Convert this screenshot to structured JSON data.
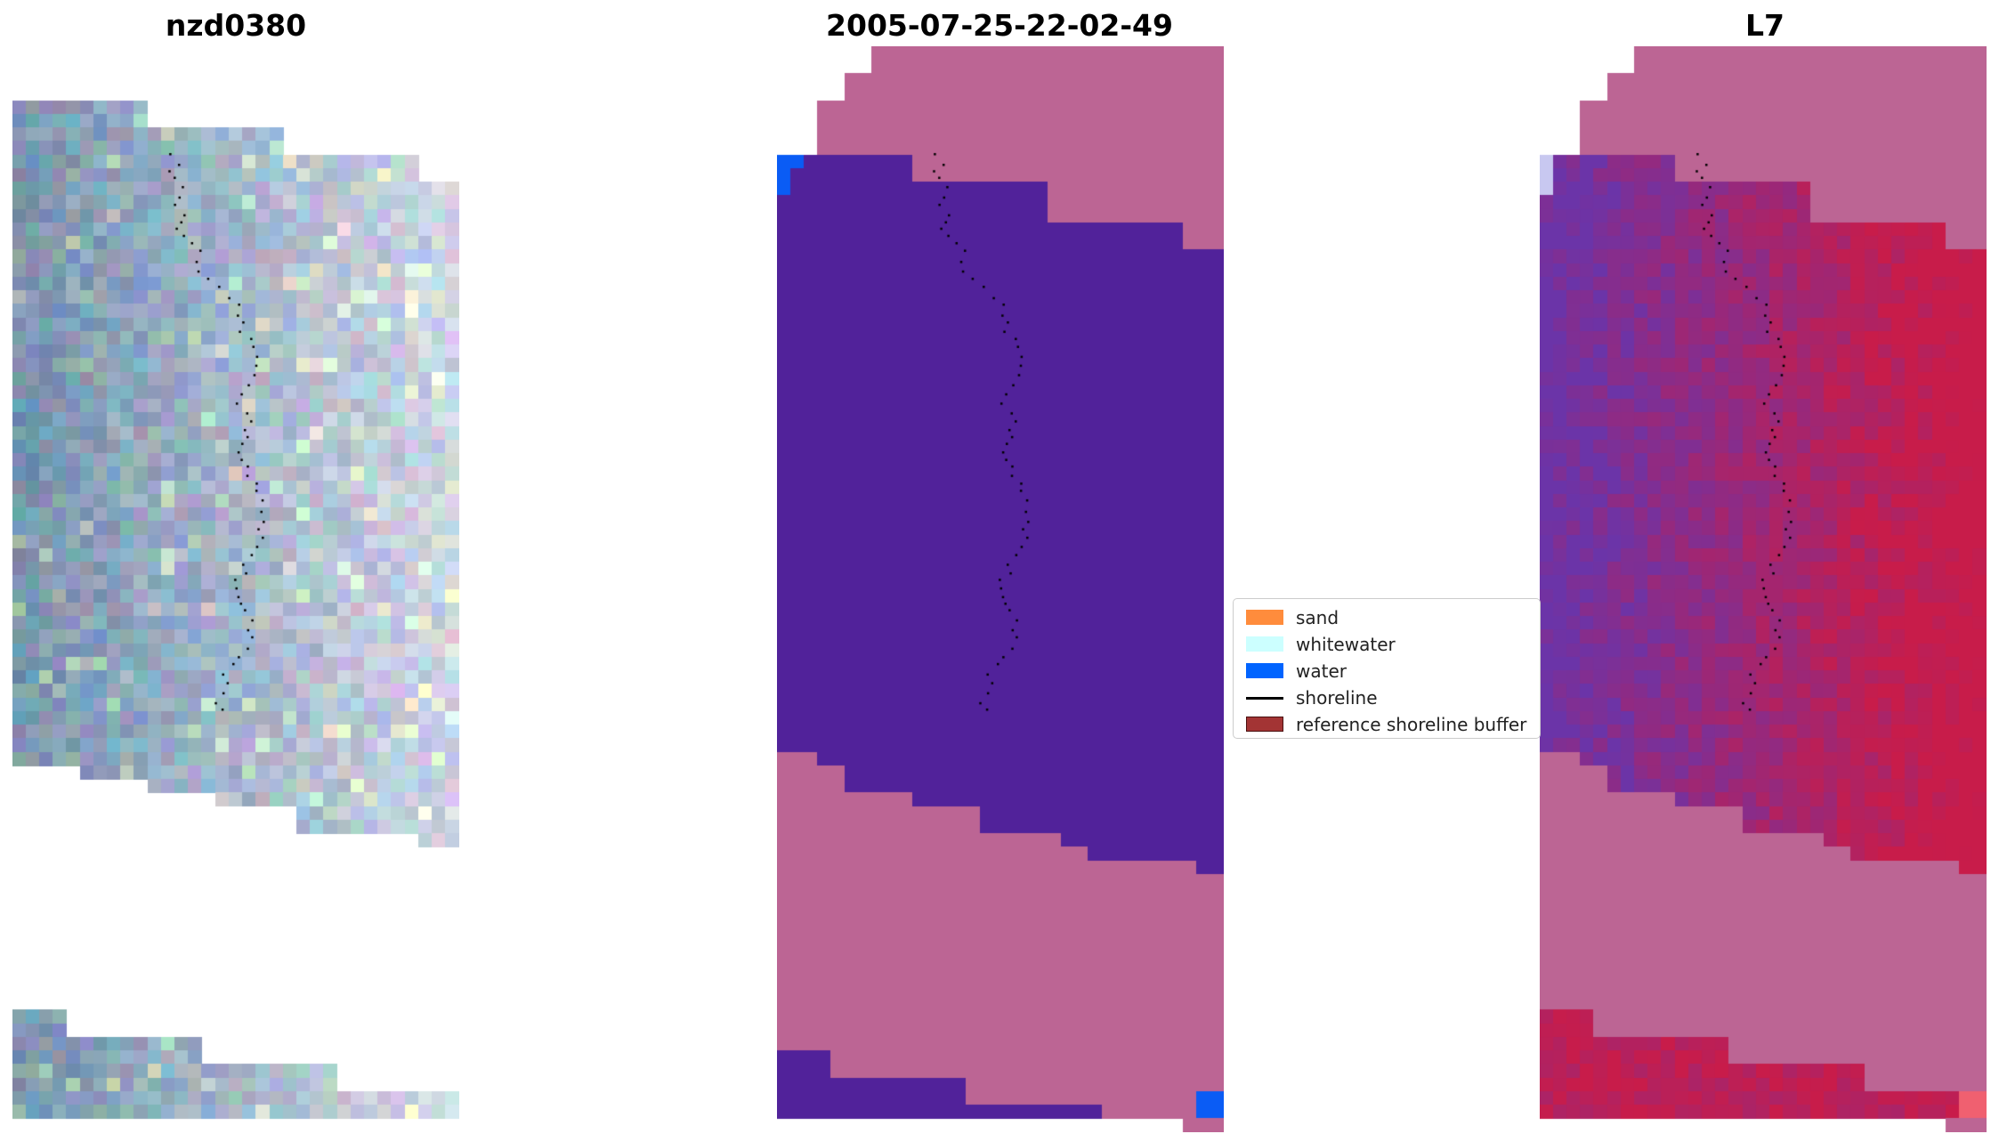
{
  "panels": [
    {
      "title": "nzd0380",
      "kind": "rgb"
    },
    {
      "title": "2005-07-25-22-02-49",
      "kind": "classification"
    },
    {
      "title": "L7",
      "kind": "index"
    }
  ],
  "legend": {
    "items": [
      {
        "label": "sand",
        "color": "#ff8c3c",
        "type": "patch"
      },
      {
        "label": "whitewater",
        "color": "#ccffff",
        "type": "patch"
      },
      {
        "label": "water",
        "color": "#0064ff",
        "type": "patch"
      },
      {
        "label": "shoreline",
        "color": "#000000",
        "type": "line"
      },
      {
        "label": "reference shoreline buffer",
        "color": "#a33434",
        "type": "patch"
      }
    ]
  },
  "colors": {
    "nodata": "#bc6594",
    "land_class": "#51229a",
    "water_class": "#0a5cf5",
    "index_low": "#6b2aa8",
    "index_high": "#c8124a"
  }
}
